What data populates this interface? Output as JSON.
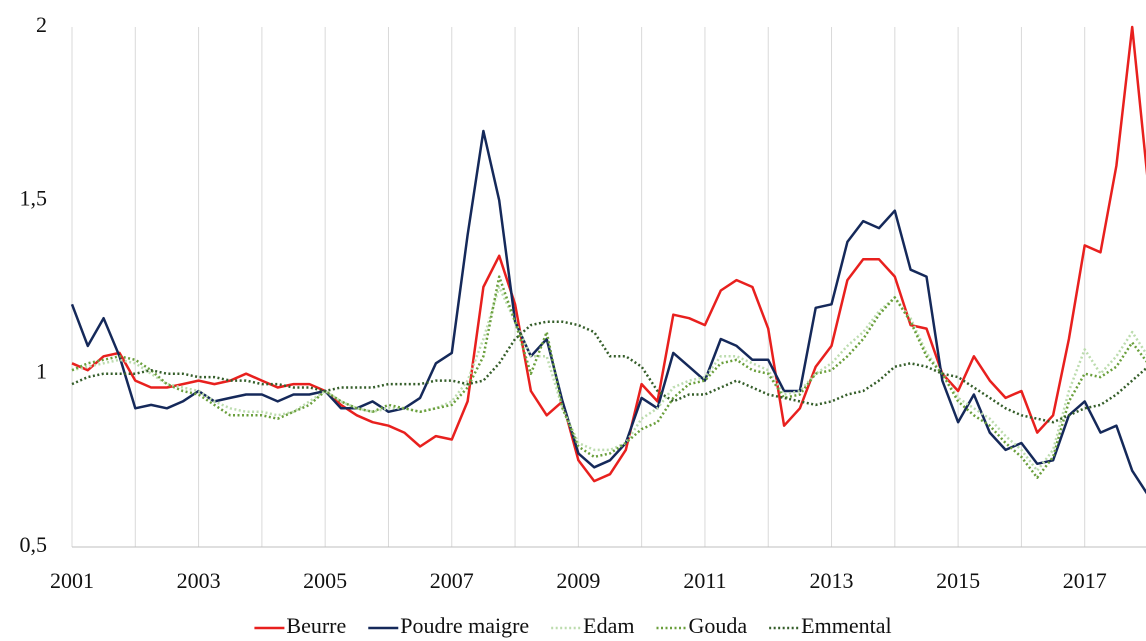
{
  "chart_data": {
    "type": "line",
    "x": [
      2001,
      2001.25,
      2001.5,
      2001.75,
      2002,
      2002.25,
      2002.5,
      2002.75,
      2003,
      2003.25,
      2003.5,
      2003.75,
      2004,
      2004.25,
      2004.5,
      2004.75,
      2005,
      2005.25,
      2005.5,
      2005.75,
      2006,
      2006.25,
      2006.5,
      2006.75,
      2007,
      2007.25,
      2007.5,
      2007.75,
      2008,
      2008.25,
      2008.5,
      2008.75,
      2009,
      2009.25,
      2009.5,
      2009.75,
      2010,
      2010.25,
      2010.5,
      2010.75,
      2011,
      2011.25,
      2011.5,
      2011.75,
      2012,
      2012.25,
      2012.5,
      2012.75,
      2013,
      2013.25,
      2013.5,
      2013.75,
      2014,
      2014.25,
      2014.5,
      2014.75,
      2015,
      2015.25,
      2015.5,
      2015.75,
      2016,
      2016.25,
      2016.5,
      2016.75,
      2017,
      2017.25,
      2017.5,
      2017.75,
      2018
    ],
    "series": [
      {
        "name": "Beurre",
        "color": "#e8201e",
        "style": "solid",
        "values": [
          1.03,
          1.01,
          1.05,
          1.06,
          0.98,
          0.96,
          0.96,
          0.97,
          0.98,
          0.97,
          0.98,
          1.0,
          0.98,
          0.96,
          0.97,
          0.97,
          0.95,
          0.91,
          0.88,
          0.86,
          0.85,
          0.83,
          0.79,
          0.82,
          0.81,
          0.92,
          1.25,
          1.34,
          1.2,
          0.95,
          0.88,
          0.92,
          0.75,
          0.69,
          0.71,
          0.78,
          0.97,
          0.92,
          1.17,
          1.16,
          1.14,
          1.24,
          1.27,
          1.25,
          1.13,
          0.85,
          0.9,
          1.02,
          1.08,
          1.27,
          1.33,
          1.33,
          1.28,
          1.14,
          1.13,
          1.0,
          0.95,
          1.05,
          0.98,
          0.93,
          0.95,
          0.83,
          0.88,
          1.1,
          1.37,
          1.35,
          1.6,
          2.0,
          1.55
        ]
      },
      {
        "name": "Poudre maigre",
        "color": "#15295a",
        "style": "solid",
        "values": [
          1.2,
          1.08,
          1.16,
          1.05,
          0.9,
          0.91,
          0.9,
          0.92,
          0.95,
          0.92,
          0.93,
          0.94,
          0.94,
          0.92,
          0.94,
          0.94,
          0.95,
          0.9,
          0.9,
          0.92,
          0.89,
          0.9,
          0.93,
          1.03,
          1.06,
          1.4,
          1.7,
          1.5,
          1.15,
          1.05,
          1.1,
          0.92,
          0.77,
          0.73,
          0.75,
          0.8,
          0.93,
          0.9,
          1.06,
          1.02,
          0.98,
          1.1,
          1.08,
          1.04,
          1.04,
          0.95,
          0.95,
          1.19,
          1.2,
          1.38,
          1.44,
          1.42,
          1.47,
          1.3,
          1.28,
          0.98,
          0.86,
          0.94,
          0.83,
          0.78,
          0.8,
          0.74,
          0.75,
          0.88,
          0.92,
          0.83,
          0.85,
          0.72,
          0.65
        ]
      },
      {
        "name": "Edam",
        "color": "#bcdcae",
        "style": "dotted",
        "values": [
          1.01,
          1.02,
          1.03,
          1.04,
          1.03,
          1.0,
          0.97,
          0.96,
          0.95,
          0.92,
          0.9,
          0.89,
          0.89,
          0.88,
          0.89,
          0.92,
          0.95,
          0.92,
          0.9,
          0.89,
          0.9,
          0.9,
          0.89,
          0.9,
          0.92,
          0.98,
          1.1,
          1.25,
          1.15,
          1.05,
          1.05,
          0.9,
          0.8,
          0.78,
          0.78,
          0.8,
          0.87,
          0.9,
          0.96,
          0.98,
          0.99,
          1.05,
          1.05,
          1.03,
          1.01,
          0.94,
          0.95,
          1.0,
          1.03,
          1.08,
          1.12,
          1.18,
          1.22,
          1.16,
          1.06,
          1.0,
          0.93,
          0.9,
          0.87,
          0.82,
          0.78,
          0.72,
          0.78,
          0.95,
          1.07,
          1.0,
          1.05,
          1.12,
          1.05
        ]
      },
      {
        "name": "Gouda",
        "color": "#6a9f3c",
        "style": "dotted",
        "values": [
          1.01,
          1.03,
          1.04,
          1.05,
          1.04,
          1.01,
          0.97,
          0.95,
          0.94,
          0.91,
          0.88,
          0.88,
          0.88,
          0.87,
          0.89,
          0.91,
          0.95,
          0.92,
          0.9,
          0.89,
          0.91,
          0.9,
          0.89,
          0.9,
          0.91,
          0.96,
          1.05,
          1.28,
          1.15,
          1.0,
          1.12,
          0.9,
          0.79,
          0.76,
          0.77,
          0.8,
          0.84,
          0.86,
          0.93,
          0.97,
          0.98,
          1.03,
          1.04,
          1.01,
          1.0,
          0.93,
          0.94,
          1.0,
          1.01,
          1.05,
          1.1,
          1.17,
          1.22,
          1.15,
          1.05,
          1.0,
          0.92,
          0.88,
          0.85,
          0.8,
          0.76,
          0.7,
          0.76,
          0.92,
          1.0,
          0.99,
          1.02,
          1.09,
          1.03
        ]
      },
      {
        "name": "Emmental",
        "color": "#355e2a",
        "style": "dotted",
        "values": [
          0.97,
          0.99,
          1.0,
          1.0,
          1.0,
          1.01,
          1.0,
          1.0,
          0.99,
          0.99,
          0.98,
          0.98,
          0.97,
          0.97,
          0.96,
          0.96,
          0.95,
          0.96,
          0.96,
          0.96,
          0.97,
          0.97,
          0.97,
          0.98,
          0.98,
          0.97,
          0.98,
          1.03,
          1.1,
          1.14,
          1.15,
          1.15,
          1.14,
          1.12,
          1.05,
          1.05,
          1.02,
          0.95,
          0.92,
          0.94,
          0.94,
          0.96,
          0.98,
          0.96,
          0.94,
          0.93,
          0.92,
          0.91,
          0.92,
          0.94,
          0.95,
          0.98,
          1.02,
          1.03,
          1.02,
          1.0,
          0.99,
          0.96,
          0.93,
          0.9,
          0.88,
          0.87,
          0.86,
          0.88,
          0.9,
          0.91,
          0.94,
          0.98,
          1.02
        ]
      }
    ],
    "xlim": [
      2001,
      2018
    ],
    "xticks": [
      2001,
      2003,
      2005,
      2007,
      2009,
      2011,
      2013,
      2015,
      2017
    ],
    "x_gridlines": [
      2001,
      2002,
      2003,
      2004,
      2005,
      2006,
      2007,
      2008,
      2009,
      2010,
      2011,
      2012,
      2013,
      2014,
      2015,
      2016,
      2017,
      2018
    ],
    "ylim": [
      0.5,
      2
    ],
    "yticks": [
      {
        "value": 0.5,
        "label": "0,5"
      },
      1,
      {
        "value": 1.5,
        "label": "1,5"
      },
      2
    ],
    "legend": "bottom"
  }
}
